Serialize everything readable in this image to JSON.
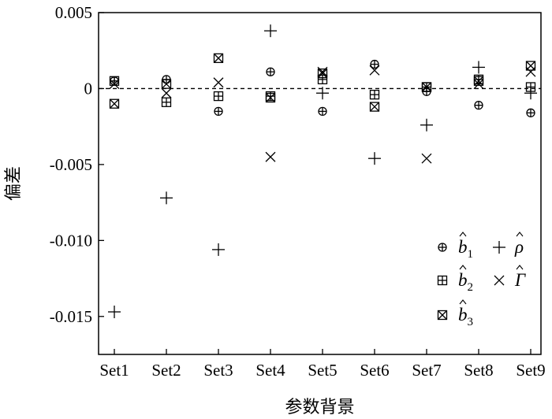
{
  "chart_data": {
    "type": "scatter",
    "title": "",
    "xlabel": "参数背景",
    "ylabel": "偏差",
    "categories": [
      "Set1",
      "Set2",
      "Set3",
      "Set4",
      "Set5",
      "Set6",
      "Set7",
      "Set8",
      "Set9"
    ],
    "ylim": [
      -0.0175,
      0.005
    ],
    "yticks": [
      0.005,
      0,
      -0.005,
      -0.01,
      -0.015
    ],
    "ytick_labels": [
      "0.005",
      "0",
      "-0.005",
      "-0.010",
      "-0.015"
    ],
    "reference_line": {
      "y": 0,
      "style": "dashed"
    },
    "grid": false,
    "legend": {
      "placement": "bottom-right"
    },
    "series": [
      {
        "key": "b1",
        "name": "b̂1",
        "legend_base": "b",
        "legend_sub": "1",
        "marker": "circle-plus",
        "values": [
          0.0005,
          0.0006,
          -0.0015,
          0.0011,
          -0.0015,
          0.0016,
          -0.0002,
          -0.0011,
          -0.0016
        ]
      },
      {
        "key": "b2",
        "name": "b̂2",
        "legend_base": "b",
        "legend_sub": "2",
        "marker": "square-plus",
        "values": [
          0.0005,
          -0.0009,
          -0.0005,
          -0.0005,
          0.0006,
          -0.0004,
          0.0001,
          0.0006,
          0.0001
        ]
      },
      {
        "key": "b3",
        "name": "b̂3",
        "legend_base": "b",
        "legend_sub": "3",
        "marker": "square-x",
        "values": [
          -0.001,
          0.0003,
          0.002,
          -0.0006,
          0.001,
          -0.0012,
          0.0001,
          0.0005,
          0.0015
        ]
      },
      {
        "key": "rho",
        "name": "ρ̂",
        "legend_base": "ρ",
        "legend_sub": "",
        "marker": "plus",
        "values": [
          -0.0147,
          -0.0072,
          -0.0106,
          0.0038,
          -0.0003,
          -0.0046,
          -0.0024,
          0.0014,
          -0.0003
        ]
      },
      {
        "key": "gamma",
        "name": "Γ̂",
        "legend_base": "Γ",
        "legend_sub": "",
        "marker": "x",
        "values": [
          0.0003,
          -0.0003,
          0.0004,
          -0.0045,
          0.0011,
          0.0012,
          -0.0046,
          0.0003,
          0.0011
        ]
      }
    ]
  }
}
